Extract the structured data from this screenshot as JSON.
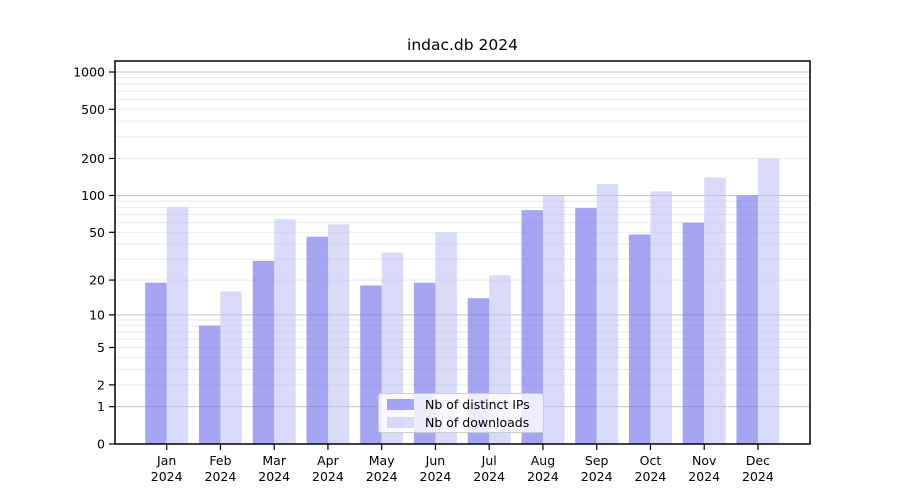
{
  "chart_data": {
    "type": "bar",
    "title": "indac.db 2024",
    "categories": [
      "Jan 2024",
      "Feb 2024",
      "Mar 2024",
      "Apr 2024",
      "May 2024",
      "Jun 2024",
      "Jul 2024",
      "Aug 2024",
      "Sep 2024",
      "Oct 2024",
      "Nov 2024",
      "Dec 2024"
    ],
    "series": [
      {
        "name": "Nb of distinct IPs",
        "color": "#7777ee",
        "opacity": 0.66,
        "values": [
          19,
          8,
          29,
          46,
          18,
          19,
          14,
          76,
          79,
          48,
          60,
          100
        ]
      },
      {
        "name": "Nb of downloads",
        "color": "#bbbbf7",
        "opacity": 0.55,
        "values": [
          80,
          16,
          64,
          58,
          34,
          50,
          22,
          100,
          124,
          108,
          140,
          200
        ]
      }
    ],
    "xlabel": "",
    "ylabel": "",
    "y_scale": "log10(value+1)",
    "ylim": [
      0,
      1221
    ],
    "yticks": [
      0,
      1,
      2,
      5,
      10,
      20,
      50,
      100,
      200,
      500,
      1000
    ],
    "major_gridlines": [
      1,
      10,
      100,
      1000
    ],
    "minor_gridlines": [
      2,
      3,
      4,
      5,
      6,
      7,
      8,
      9,
      20,
      30,
      40,
      50,
      60,
      70,
      80,
      90,
      200,
      300,
      400,
      500,
      600,
      700,
      800,
      900
    ],
    "grid": true,
    "legend_position": "inside lower-center",
    "colors": {
      "grid_major": "#c4c4c4",
      "grid_minor": "#eaeaea",
      "axis": "#000000",
      "text": "#000000",
      "background": "#ffffff"
    }
  }
}
